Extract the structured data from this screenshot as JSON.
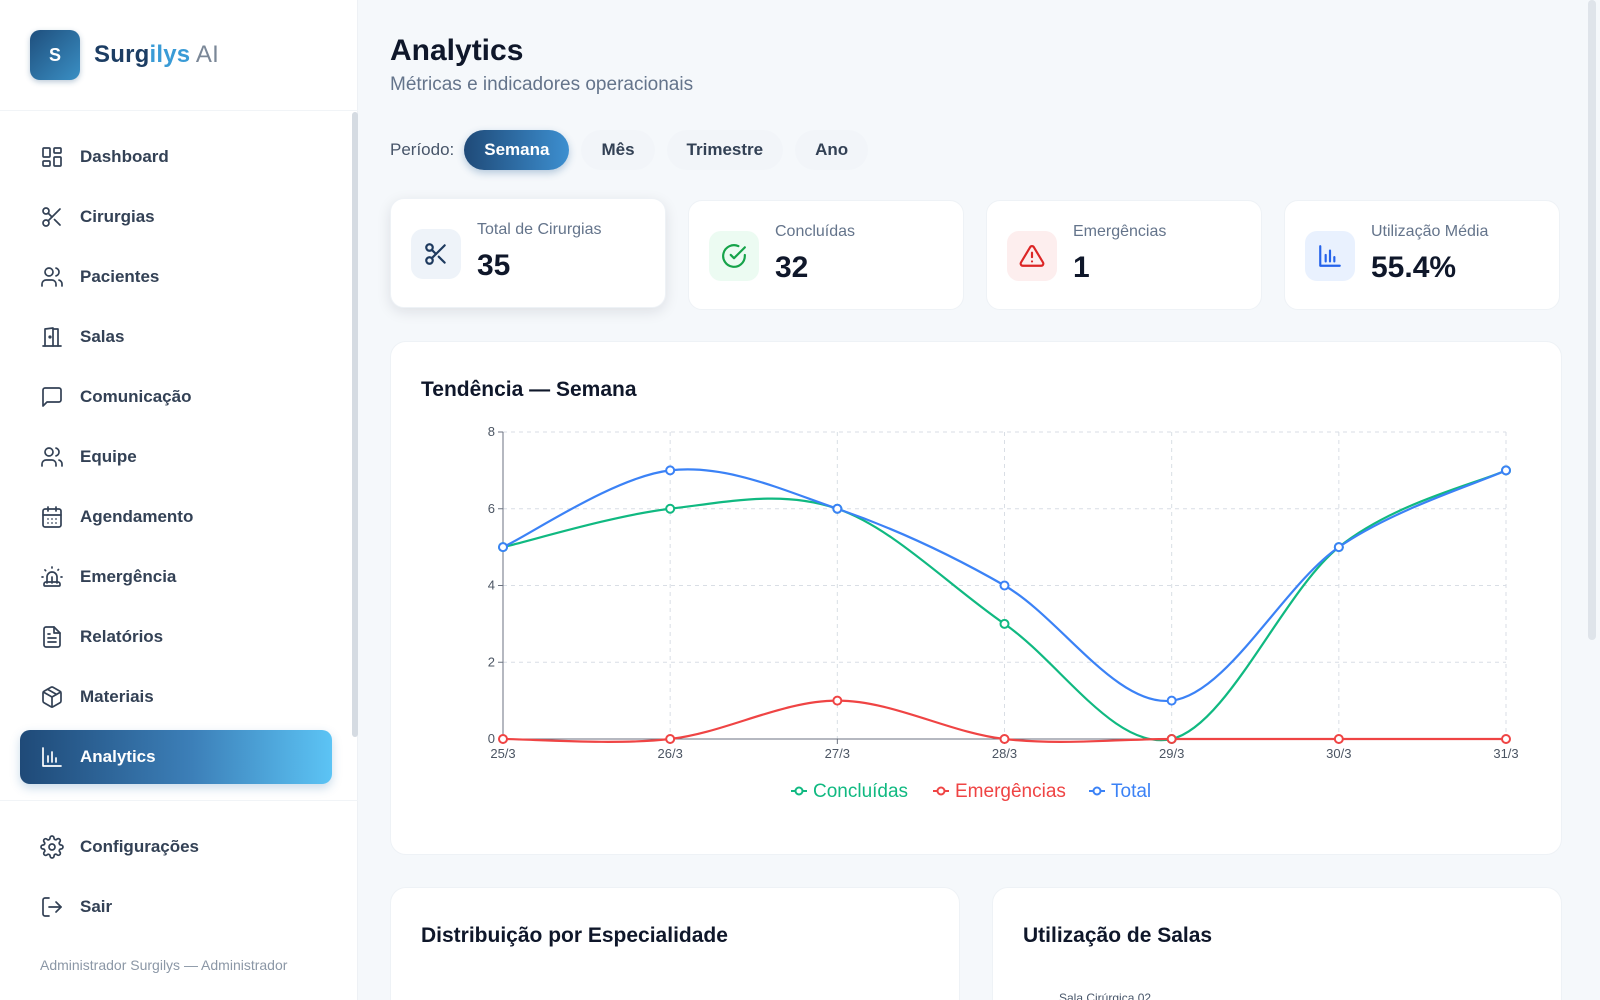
{
  "brand": {
    "logo_letter": "S",
    "name_part1": "Surg",
    "name_part2": "ilys",
    "name_part3": " AI"
  },
  "sidebar": {
    "items": [
      {
        "label": "Dashboard",
        "icon": "dashboard-icon"
      },
      {
        "label": "Cirurgias",
        "icon": "scissors-icon"
      },
      {
        "label": "Pacientes",
        "icon": "users-icon"
      },
      {
        "label": "Salas",
        "icon": "door-icon"
      },
      {
        "label": "Comunicação",
        "icon": "message-icon"
      },
      {
        "label": "Equipe",
        "icon": "team-icon"
      },
      {
        "label": "Agendamento",
        "icon": "calendar-icon"
      },
      {
        "label": "Emergência",
        "icon": "siren-icon"
      },
      {
        "label": "Relatórios",
        "icon": "file-text-icon"
      },
      {
        "label": "Materiais",
        "icon": "package-icon"
      },
      {
        "label": "Analytics",
        "icon": "bar-chart-icon",
        "active": true
      }
    ],
    "bottom_items": [
      {
        "label": "Configurações",
        "icon": "gear-icon"
      },
      {
        "label": "Sair",
        "icon": "logout-icon"
      }
    ],
    "footer_user": "Administrador Surgilys — Administrador"
  },
  "page": {
    "title": "Analytics",
    "subtitle": "Métricas e indicadores operacionais"
  },
  "period": {
    "label": "Período:",
    "options": [
      "Semana",
      "Mês",
      "Trimestre",
      "Ano"
    ],
    "selected": "Semana"
  },
  "kpis": [
    {
      "label": "Total de Cirurgias",
      "value": "35",
      "icon": "scissors-icon",
      "color": "#1e3a5f"
    },
    {
      "label": "Concluídas",
      "value": "32",
      "icon": "check-circle-icon",
      "color": "#16a34a"
    },
    {
      "label": "Emergências",
      "value": "1",
      "icon": "alert-triangle-icon",
      "color": "#dc2626"
    },
    {
      "label": "Utilização Média",
      "value": "55.4%",
      "icon": "bar-chart-icon",
      "color": "#2563eb"
    }
  ],
  "trend_card": {
    "title": "Tendência — Semana"
  },
  "chart_data": {
    "type": "line",
    "x": [
      "25/3",
      "26/3",
      "27/3",
      "28/3",
      "29/3",
      "30/3",
      "31/3"
    ],
    "ylim": [
      0,
      8
    ],
    "yticks": [
      "0",
      "2",
      "4",
      "6",
      "8"
    ],
    "grid": true,
    "legend": "bottom",
    "series": [
      {
        "name": "Concluídas",
        "color": "#10b981",
        "values": [
          5,
          6,
          6,
          3,
          0,
          5,
          7
        ]
      },
      {
        "name": "Emergências",
        "color": "#ef4444",
        "values": [
          0,
          0,
          1,
          0,
          0,
          0,
          0
        ]
      },
      {
        "name": "Total",
        "color": "#3b82f6",
        "values": [
          5,
          7,
          6,
          4,
          1,
          5,
          7
        ]
      }
    ]
  },
  "bottom_cards": {
    "left_title": "Distribuição por Especialidade",
    "right_title": "Utilização de Salas",
    "room_label": "Sala Cirúrgica 02"
  }
}
